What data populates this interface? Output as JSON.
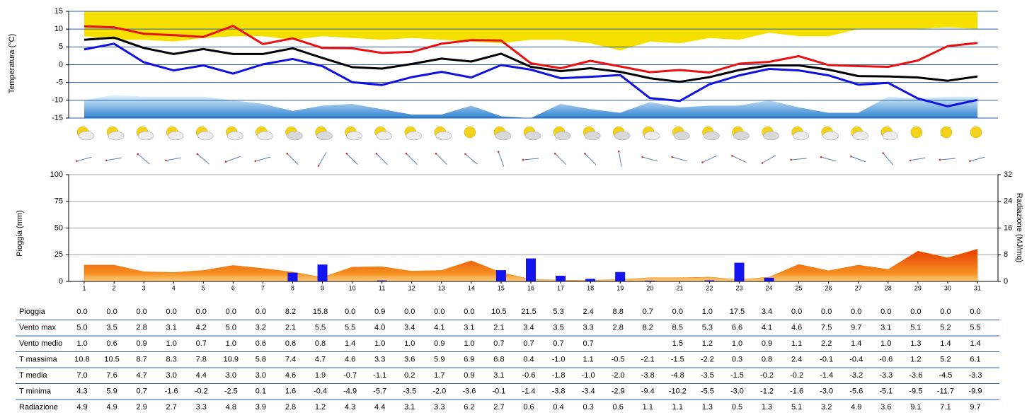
{
  "chart_data": [
    {
      "type": "line",
      "ylabel": "Temperatura (°C)",
      "ylim": [
        -15,
        15
      ],
      "yticks": [
        -15,
        -10,
        -5,
        0,
        5,
        10,
        15
      ],
      "grid": true,
      "bands": [
        {
          "color": "#f5e000",
          "to": "top",
          "values": [
            8,
            7,
            7,
            6.5,
            7.5,
            8,
            8,
            7,
            8,
            7.5,
            7,
            7.5,
            7,
            6.5,
            6,
            7,
            7,
            6,
            4,
            6.5,
            6,
            7.5,
            7,
            9,
            8,
            8,
            10,
            10,
            10,
            10.5,
            10
          ]
        },
        {
          "color": "#5aa0e0",
          "to": "bottom",
          "values": [
            -10,
            -8.5,
            -9,
            -9,
            -9,
            -10,
            -11,
            -13,
            -11.5,
            -11,
            -12.5,
            -14,
            -14,
            -11.5,
            -14.5,
            -15,
            -11,
            -12.5,
            -13.5,
            -10.5,
            -12,
            -11.5,
            -11.5,
            -10,
            -12,
            -13.5,
            -13.5,
            -9,
            -9.5,
            -9,
            -9
          ]
        }
      ],
      "series": [
        {
          "color": "#e81010",
          "values": [
            10.8,
            10.5,
            8.7,
            8.3,
            7.8,
            10.9,
            5.8,
            7.4,
            4.7,
            4.6,
            3.3,
            3.6,
            5.9,
            6.9,
            6.8,
            0.4,
            -1.0,
            1.1,
            -0.5,
            -2.1,
            -1.5,
            -2.2,
            0.3,
            0.8,
            2.4,
            -0.1,
            -0.4,
            -0.6,
            1.2,
            5.2,
            6.1
          ]
        },
        {
          "color": "#000000",
          "values": [
            7.0,
            7.6,
            4.7,
            3.0,
            4.4,
            3.0,
            3.0,
            4.6,
            1.9,
            -0.7,
            -1.1,
            0.2,
            1.7,
            0.9,
            3.1,
            -0.6,
            -1.8,
            -1.0,
            -2.0,
            -3.8,
            -4.8,
            -3.5,
            -1.5,
            -0.2,
            -0.2,
            -1.4,
            -3.2,
            -3.3,
            -3.6,
            -4.5,
            -3.3
          ]
        },
        {
          "color": "#1010e0",
          "values": [
            4.3,
            5.9,
            0.7,
            -1.6,
            -0.2,
            -2.5,
            0.1,
            1.6,
            -0.4,
            -4.9,
            -5.7,
            -3.5,
            -2.0,
            -3.6,
            -0.1,
            -1.4,
            -3.8,
            -3.4,
            -2.9,
            -9.4,
            -10.2,
            -5.5,
            -3.0,
            -1.2,
            -1.6,
            -3.0,
            -5.6,
            -5.1,
            -9.5,
            -11.7,
            -9.9
          ]
        }
      ]
    },
    {
      "type": "bar",
      "ylabel": "Pioggia (mm)",
      "y2label": "Radiazione (MJ/mq)",
      "categories": [
        "1",
        "2",
        "3",
        "4",
        "5",
        "6",
        "7",
        "8",
        "9",
        "10",
        "11",
        "12",
        "13",
        "14",
        "15",
        "16",
        "17",
        "18",
        "19",
        "20",
        "21",
        "22",
        "23",
        "24",
        "25",
        "26",
        "27",
        "28",
        "29",
        "30",
        "31"
      ],
      "ylim": [
        0,
        100
      ],
      "yticks": [
        0,
        25,
        50,
        75,
        100
      ],
      "y2lim": [
        0,
        32
      ],
      "y2ticks": [
        0,
        8,
        16,
        24,
        32
      ],
      "grid": true,
      "series": [
        {
          "type": "bar",
          "color": "#1414f0",
          "values": [
            0.0,
            0.0,
            0.0,
            0.0,
            0.0,
            0.0,
            0.0,
            8.2,
            15.8,
            0.0,
            0.9,
            0.0,
            0.0,
            0.0,
            10.5,
            21.5,
            5.3,
            2.4,
            8.8,
            0.7,
            0.0,
            1.0,
            17.5,
            3.4,
            0.0,
            0.0,
            0.0,
            0.0,
            0.0,
            0.0,
            0.0
          ]
        },
        {
          "type": "area",
          "axis": "y2",
          "color": "#f07800",
          "values": [
            4.9,
            4.9,
            2.9,
            2.7,
            3.3,
            4.8,
            3.9,
            2.8,
            1.2,
            4.3,
            4.4,
            3.1,
            3.3,
            6.2,
            2.7,
            0.6,
            0.4,
            0.3,
            0.6,
            1.1,
            1.1,
            1.3,
            0.5,
            1.3,
            5.1,
            3.2,
            4.9,
            3.6,
            9.1,
            7.1,
            9.7
          ]
        }
      ]
    }
  ],
  "table": {
    "rows": [
      {
        "label": "Pioggia",
        "cells": [
          "0.0",
          "0.0",
          "0.0",
          "0.0",
          "0.0",
          "0.0",
          "0.0",
          "8.2",
          "15.8",
          "0.0",
          "0.9",
          "0.0",
          "0.0",
          "0.0",
          "10.5",
          "21.5",
          "5.3",
          "2.4",
          "8.8",
          "0.7",
          "0.0",
          "1.0",
          "17.5",
          "3.4",
          "0.0",
          "0.0",
          "0.0",
          "0.0",
          "0.0",
          "0.0",
          "0.0"
        ]
      },
      {
        "label": "Vento max",
        "cells": [
          "5.0",
          "3.5",
          "2.8",
          "3.1",
          "4.2",
          "5.0",
          "3.2",
          "2.1",
          "5.5",
          "5.5",
          "4.0",
          "3.4",
          "4.1",
          "3.1",
          "2.1",
          "3.4",
          "3.5",
          "3.3",
          "2.8",
          "8.2",
          "8.5",
          "5.3",
          "6.6",
          "4.1",
          "4.6",
          "7.5",
          "9.7",
          "3.1",
          "5.1",
          "5.2",
          "5.5"
        ]
      },
      {
        "label": "Vento medio",
        "cells": [
          "1.0",
          "0.6",
          "0.9",
          "1.0",
          "0.7",
          "1.0",
          "0.6",
          "0.6",
          "0.8",
          "1.4",
          "1.0",
          "1.0",
          "0.9",
          "1.0",
          "0.7",
          "0.7",
          "0.7",
          "0.7",
          null,
          null,
          "1.5",
          "1.2",
          "1.0",
          "0.9",
          "1.1",
          "2.2",
          "1.4",
          "1.0",
          "1.3",
          "1.4",
          "1.4"
        ]
      },
      {
        "label": "T massima",
        "cells": [
          "10.8",
          "10.5",
          "8.7",
          "8.3",
          "7.8",
          "10.9",
          "5.8",
          "7.4",
          "4.7",
          "4.6",
          "3.3",
          "3.6",
          "5.9",
          "6.9",
          "6.8",
          "0.4",
          "-1.0",
          "1.1",
          "-0.5",
          "-2.1",
          "-1.5",
          "-2.2",
          "0.3",
          "0.8",
          "2.4",
          "-0.1",
          "-0.4",
          "-0.6",
          "1.2",
          "5.2",
          "6.1"
        ]
      },
      {
        "label": "T media",
        "cells": [
          "7.0",
          "7.6",
          "4.7",
          "3.0",
          "4.4",
          "3.0",
          "3.0",
          "4.6",
          "1.9",
          "-0.7",
          "-1.1",
          "0.2",
          "1.7",
          "0.9",
          "3.1",
          "-0.6",
          "-1.8",
          "-1.0",
          "-2.0",
          "-3.8",
          "-4.8",
          "-3.5",
          "-1.5",
          "-0.2",
          "-0.2",
          "-1.4",
          "-3.2",
          "-3.3",
          "-3.6",
          "-4.5",
          "-3.3"
        ]
      },
      {
        "label": "T minima",
        "cells": [
          "4.3",
          "5.9",
          "0.7",
          "-1.6",
          "-0.2",
          "-2.5",
          "0.1",
          "1.6",
          "-0.4",
          "-4.9",
          "-5.7",
          "-3.5",
          "-2.0",
          "-3.6",
          "-0.1",
          "-1.4",
          "-3.8",
          "-3.4",
          "-2.9",
          "-9.4",
          "-10.2",
          "-5.5",
          "-3.0",
          "-1.2",
          "-1.6",
          "-3.0",
          "-5.6",
          "-5.1",
          "-9.5",
          "-11.7",
          "-9.9"
        ]
      },
      {
        "label": "Radiazione",
        "cells": [
          "4.9",
          "4.9",
          "2.9",
          "2.7",
          "3.3",
          "4.8",
          "3.9",
          "2.8",
          "1.2",
          "4.3",
          "4.4",
          "3.1",
          "3.3",
          "6.2",
          "2.7",
          "0.6",
          "0.4",
          "0.3",
          "0.6",
          "1.1",
          "1.1",
          "1.3",
          "0.5",
          "1.3",
          "5.1",
          "3.2",
          "4.9",
          "3.6",
          "9.1",
          "7.1",
          "9.7"
        ]
      }
    ]
  }
}
